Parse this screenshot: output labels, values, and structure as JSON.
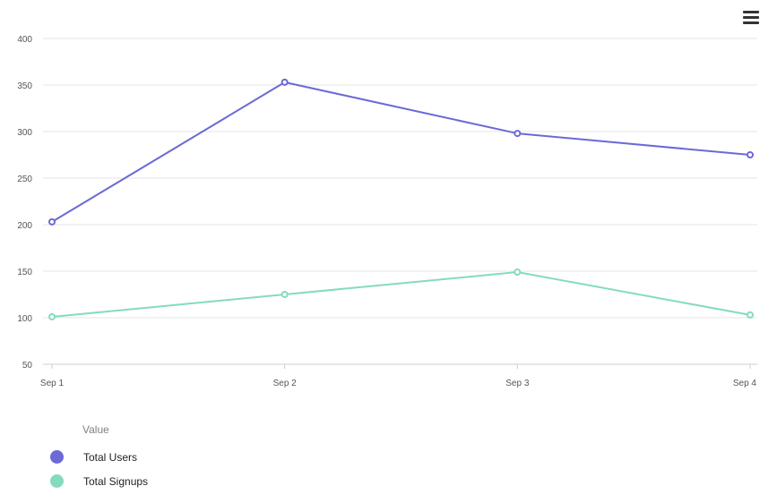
{
  "chart_data": {
    "type": "line",
    "categories": [
      "Sep 1",
      "Sep 2",
      "Sep 3",
      "Sep 4"
    ],
    "yticks": [
      50,
      100,
      150,
      200,
      250,
      300,
      350,
      400
    ],
    "ylim": [
      50,
      400
    ],
    "grid": true,
    "legend_title": "Value",
    "legend_position": "bottom-left",
    "series": [
      {
        "name": "Total Users",
        "color": "#6b6ad6",
        "values": [
          203,
          353,
          298,
          275
        ]
      },
      {
        "name": "Total Signups",
        "color": "#84dcbc",
        "values": [
          101,
          125,
          149,
          103
        ]
      }
    ]
  },
  "toolbar": {
    "menu_icon": "hamburger-menu-icon"
  }
}
